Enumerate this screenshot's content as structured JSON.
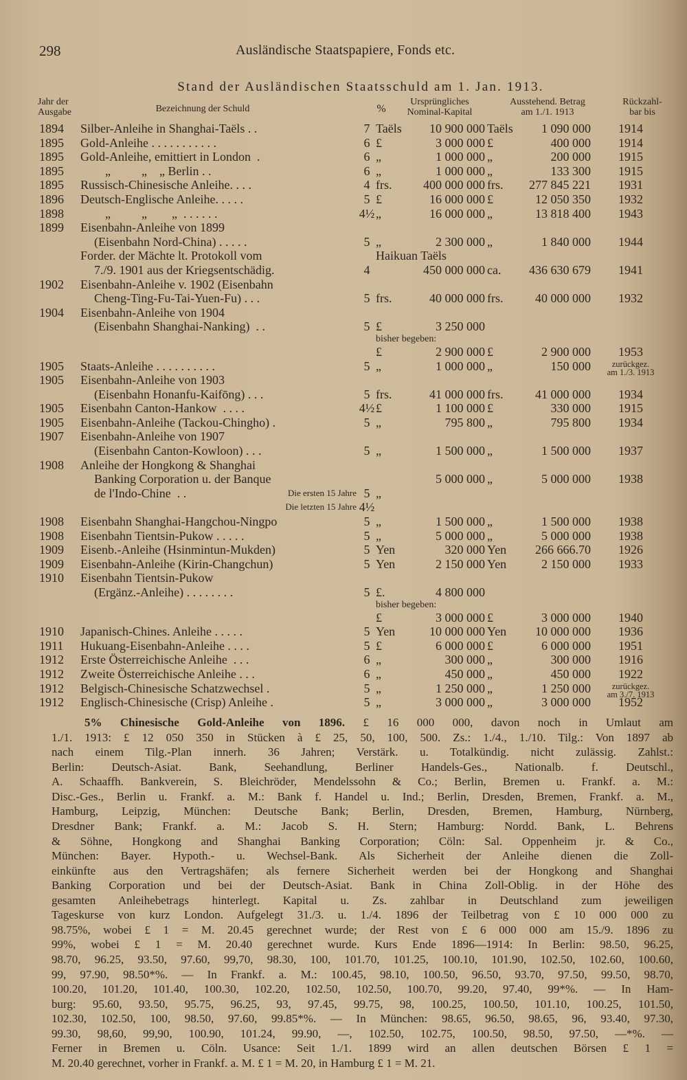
{
  "header": {
    "page_number": "298",
    "running_title": "Ausländische Staatspapiere, Fonds etc."
  },
  "table": {
    "title": "Stand der Ausländischen Staatsschuld am 1. Jan. 1913.",
    "headers": {
      "year": "Jahr der\nAusgabe",
      "desc": "Bezeichnung der Schuld",
      "pct": "%",
      "nominal": "Ursprüngliches\nNominal-Kapital",
      "outstanding": "Ausstehend. Betrag\nam 1./1. 1913",
      "due": "Rückzahl-\nbar bis"
    },
    "rows": [
      {
        "y": "1894",
        "d": "Silber-Anleihe in Shanghai-Taëls . .",
        "p": "7",
        "c1": "Taëls",
        "n": "10 900 000",
        "c2": "Taëls",
        "o": "1 090 000",
        "r": "1914"
      },
      {
        "y": "1895",
        "d": "Gold-Anleihe . . . . . . . . . . .",
        "p": "6",
        "c1": "£",
        "n": "3 000 000",
        "c2": "£",
        "o": "400 000",
        "r": "1914"
      },
      {
        "y": "1895",
        "d": "Gold-Anleihe, emittiert in London  .",
        "p": "6",
        "c1": "„",
        "n": "1 000 000",
        "c2": "„",
        "o": "200 000",
        "r": "1915"
      },
      {
        "y": "1895",
        "d": "        „          „    „ Berlin . .",
        "p": "6",
        "c1": "„",
        "n": "1 000 000",
        "c2": "„",
        "o": "133 300",
        "r": "1915"
      },
      {
        "y": "1895",
        "d": "Russisch-Chinesische Anleihe. . . .",
        "p": "4",
        "c1": "frs.",
        "n": "400 000 000",
        "c2": "frs.",
        "o": "277 845 221",
        "r": "1931"
      },
      {
        "y": "1896",
        "d": "Deutsch-Englische Anleihe. . . . .",
        "p": "5",
        "c1": "£",
        "n": "16 000 000",
        "c2": "£",
        "o": "12 050 350",
        "r": "1932"
      },
      {
        "y": "1898",
        "d": "        „          „        „  . . . . . .",
        "p": "4½",
        "c1": "„",
        "n": "16 000 000",
        "c2": "„",
        "o": "13 818 400",
        "r": "1943"
      },
      {
        "y": "1899",
        "d": "Eisenbahn-Anleihe von 1899"
      },
      {
        "i": true,
        "d": "(Eisenbahn Nord-China) . . . . .",
        "p": "5",
        "c1": "„",
        "n": "2 300 000",
        "c2": "„",
        "o": "1 840 000",
        "r": "1944"
      },
      {
        "d": "Forder. der Mächte lt. Protokoll vom",
        "c1": "Haikuan Taëls"
      },
      {
        "i": true,
        "d": "7./9. 1901 aus der Kriegsentschädig.",
        "p": "4",
        "n": "450 000 000",
        "c2": "ca.",
        "o": "436 630 679",
        "r": "1941"
      },
      {
        "y": "1902",
        "d": "Eisenbahn-Anleihe v. 1902 (Eisenbahn"
      },
      {
        "i": true,
        "d": "Cheng-Ting-Fu-Tai-Yuen-Fu) . . .",
        "p": "5",
        "c1": "frs.",
        "n": "40 000 000",
        "c2": "frs.",
        "o": "40 000 000",
        "r": "1932"
      },
      {
        "y": "1904",
        "d": "Eisenbahn-Anleihe von 1904"
      },
      {
        "i": true,
        "d": "(Eisenbahn Shanghai-Nanking)  . .",
        "p": "5",
        "c1": "£",
        "n": "3 250 000"
      },
      {
        "s": true,
        "c1": "bisher begeben:"
      },
      {
        "c1": "£",
        "n": "2 900 000",
        "c2": "£",
        "o": "2 900 000",
        "r": "1953"
      },
      {
        "y": "1905",
        "d": "Staats-Anleihe . . . . . . . . . .",
        "p": "5",
        "c1": "„",
        "n": "1 000 000",
        "c2": "„",
        "o": "150 000",
        "r": "zurückgez.\nam 1./3. 1913"
      },
      {
        "y": "1905",
        "d": "Eisenbahn-Anleihe von 1903"
      },
      {
        "i": true,
        "d": "(Eisenbahn Honanfu-Kaifōng) . . .",
        "p": "5",
        "c1": "frs.",
        "n": "41 000 000",
        "c2": "frs.",
        "o": "41 000 000",
        "r": "1934"
      },
      {
        "y": "1905",
        "d": "Eisenbahn Canton-Hankow  . . . .",
        "p": "4½",
        "c1": "£",
        "n": "1 100 000",
        "c2": "£",
        "o": "330 000",
        "r": "1915"
      },
      {
        "y": "1905",
        "d": "Eisenbahn-Anleihe (Tackou-Chingho) .",
        "p": "5",
        "c1": "„",
        "n": "795 800",
        "c2": "„",
        "o": "795 800",
        "r": "1934"
      },
      {
        "y": "1907",
        "d": "Eisenbahn-Anleihe von 1907"
      },
      {
        "i": true,
        "d": "(Eisenbahn Canton-Kowloon) . . .",
        "p": "5",
        "c1": "„",
        "n": "1 500 000",
        "c2": "„",
        "o": "1 500 000",
        "r": "1937"
      },
      {
        "y": "1908",
        "d": "Anleihe der Hongkong & Shanghai"
      },
      {
        "i": true,
        "d": "Banking Corporation u. der Banque",
        "n": "5 000 000",
        "c2": "„",
        "o": "5 000 000",
        "r": "1938"
      },
      {
        "i": true,
        "d": "de l'Indo-Chine  . .",
        "note": "Die ersten 15 Jahre",
        "p": "5",
        "c1": "„"
      },
      {
        "note": "Die letzten 15 Jahre",
        "p": "4½"
      },
      {
        "y": "1908",
        "d": "Eisenbahn Shanghai-Hangchou-Ningpo",
        "p": "5",
        "c1": "„",
        "n": "1 500 000",
        "c2": "„",
        "o": "1 500 000",
        "r": "1938"
      },
      {
        "y": "1908",
        "d": "Eisenbahn Tientsin-Pukow . . . . .",
        "p": "5",
        "c1": "„",
        "n": "5 000 000",
        "c2": "„",
        "o": "5 000 000",
        "r": "1938"
      },
      {
        "y": "1909",
        "d": "Eisenb.-Anleihe (Hsinmintun-Mukden)",
        "p": "5",
        "c1": "Yen",
        "n": "320 000",
        "c2": "Yen",
        "o": "266 666.70",
        "r": "1926"
      },
      {
        "y": "1909",
        "d": "Eisenbahn-Anleihe (Kirin-Changchun)",
        "p": "5",
        "c1": "Yen",
        "n": "2 150 000",
        "c2": "Yen",
        "o": "2 150 000",
        "r": "1933"
      },
      {
        "y": "1910",
        "d": "Eisenbahn Tientsin-Pukow"
      },
      {
        "i": true,
        "d": "(Ergänz.-Anleihe) . . . . . . . .",
        "p": "5",
        "c1": "£.",
        "n": "4 800 000"
      },
      {
        "s": true,
        "c1": "bisher begeben:"
      },
      {
        "c1": "£",
        "n": "3 000 000",
        "c2": "£",
        "o": "3 000 000",
        "r": "1940"
      },
      {
        "y": "1910",
        "d": "Japanisch-Chines. Anleihe . . . . .",
        "p": "5",
        "c1": "Yen",
        "n": "10 000 000",
        "c2": "Yen",
        "o": "10 000 000",
        "r": "1936"
      },
      {
        "y": "1911",
        "d": "Hukuang-Eisenbahn-Anleihe . . . .",
        "p": "5",
        "c1": "£",
        "n": "6 000 000",
        "c2": "£",
        "o": "6 000 000",
        "r": "1951"
      },
      {
        "y": "1912",
        "d": "Erste Österreichische Anleihe  . . .",
        "p": "6",
        "c1": "„",
        "n": "300 000",
        "c2": "„",
        "o": "300 000",
        "r": "1916"
      },
      {
        "y": "1912",
        "d": "Zweite Österreichische Anleihe . . .",
        "p": "6",
        "c1": "„",
        "n": "450 000",
        "c2": "„",
        "o": "450 000",
        "r": "1922"
      },
      {
        "y": "1912",
        "d": "Belgisch-Chinesische Schatzwechsel .",
        "p": "5",
        "c1": "„",
        "n": "1 250 000",
        "c2": "„",
        "o": "1 250 000",
        "r": "zurückgez.\nam 3./7. 1913"
      },
      {
        "y": "1912",
        "d": "Englisch-Chinesische (Crisp) Anleihe .",
        "p": "5",
        "c1": "„",
        "n": "3 000 000",
        "c2": "„",
        "o": "3 000 000",
        "r": "1952"
      }
    ]
  },
  "paragraph": {
    "lead": "5% Chinesische Gold-Anleihe von 1896.",
    "lines": [
      " £ 16 000 000, davon noch in Umlaut am",
      "1./1. 1913: £ 12 050 350 in Stücken à £ 25, 50, 100, 500. Zs.: 1./4., 1./10. Tilg.: Von 1897 ab",
      "nach einem Tilg.-Plan innerh. 36 Jahren; Verstärk. u. Totalkündig. nicht zulässig. Zahlst.:",
      "Berlin: Deutsch-Asiat. Bank, Seehandlung, Berliner Handels-Ges., Nationalb. f. Deutschl.,",
      "A. Schaaffh. Bankverein, S. Bleichröder, Mendelssohn & Co.; Berlin, Bremen u. Frankf. a. M.:",
      "Disc.-Ges., Berlin u. Frankf. a. M.: Bank f. Handel u. Ind.; Berlin, Dresden, Bremen, Frankf. a. M.,",
      "Hamburg, Leipzig, München: Deutsche Bank; Berlin, Dresden, Bremen, Hamburg, Nürnberg,",
      "Dresdner Bank; Frankf. a. M.: Jacob S. H. Stern; Hamburg: Nordd. Bank, L. Behrens",
      "& Söhne, Hongkong and Shanghai Banking Corporation; Cöln: Sal. Oppenheim jr. & Co.,",
      "München: Bayer. Hypoth.- u. Wechsel-Bank. Als Sicherheit der Anleihe dienen die Zoll-",
      "einkünfte aus den Vertragshäfen; als fernere Sicherheit werden bei der Hongkong and Shanghai",
      "Banking Corporation und bei der Deutsch-Asiat. Bank in China Zoll-Oblig. in der Höhe des",
      "gesamten Anleihebetrags hinterlegt. Kapital u. Zs. zahlbar in Deutschland zum jeweiligen",
      "Tageskurse von kurz London. Aufgelegt 31./3. u. 1./4. 1896 der Teilbetrag von £ 10 000 000 zu",
      "98.75%, wobei £ 1 = M. 20.45 gerechnet wurde; der Rest von £ 6 000 000 am 15./9. 1896 zu",
      "99%, wobei £ 1 = M. 20.40 gerechnet wurde. Kurs Ende 1896—1914: In Berlin: 98.50, 96.25,",
      "98.70, 96.25, 93.50, 97.60, 99,70, 98.30, 100, 101.70, 101.25, 100.10, 101.90, 102.50, 102.60, 100.60,",
      "99, 97.90, 98.50*%. — In Frankf. a. M.: 100.45, 98.10, 100.50, 96.50, 93.70, 97.50, 99.50, 98.70,",
      "100.20, 101.20, 101.40, 100.30, 102.20, 102.50, 102.50, 100.70, 99.20, 97.40, 99*%. — In Ham-",
      "burg: 95.60, 93.50, 95.75, 96.25, 93, 97.45, 99.75, 98, 100.25, 100.50, 101.10, 100.25, 101.50,",
      "102.30, 102.50, 100, 98.50, 97.60, 99.85*%. — In München: 98.65, 96.50, 98.65, 96, 93.40, 97.30,",
      "99.30, 98,60, 99,90, 100.90, 101.24, 99.90, —, 102.50, 102.75, 100.50, 98.50, 97.50, —*%. —",
      "Ferner in Bremen u. Cöln. Usance: Seit 1./1. 1899 wird an allen deutschen Börsen £ 1 =",
      "M. 20.40 gerechnet, vorher in Frankf. a. M. £ 1 = M. 20, in Hamburg £ 1 = M. 21."
    ]
  }
}
